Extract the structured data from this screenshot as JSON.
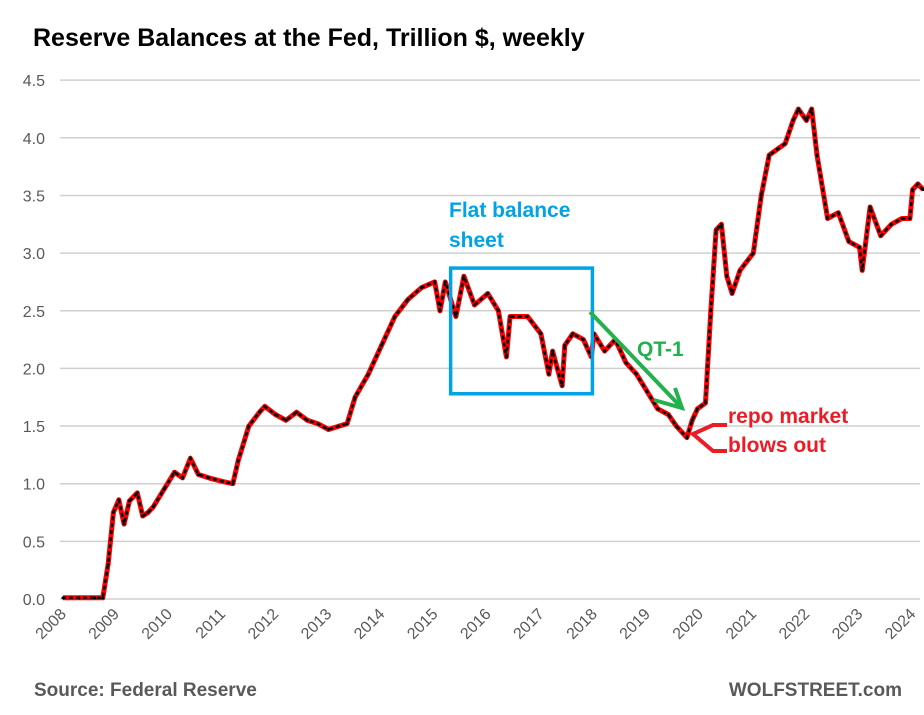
{
  "chart_data": {
    "type": "line",
    "title": "Reserve Balances at the Fed, Trillion $, weekly",
    "xlabel": "",
    "ylabel": "",
    "xlim": [
      2008,
      2024.25
    ],
    "ylim": [
      0,
      4.5
    ],
    "grid": true,
    "y_ticks": [
      "0.0",
      "0.5",
      "1.0",
      "1.5",
      "2.0",
      "2.5",
      "3.0",
      "3.5",
      "4.0",
      "4.5"
    ],
    "x_ticks": [
      "2008",
      "2009",
      "2010",
      "2011",
      "2012",
      "2013",
      "2014",
      "2015",
      "2016",
      "2017",
      "2018",
      "2019",
      "2020",
      "2021",
      "2022",
      "2023",
      "2024"
    ],
    "series": [
      {
        "name": "Reserve balances",
        "color": "#ff0000",
        "x": [
          2008.0,
          2008.3,
          2008.6,
          2008.75,
          2008.85,
          2008.95,
          2009.05,
          2009.15,
          2009.25,
          2009.4,
          2009.5,
          2009.6,
          2009.7,
          2009.9,
          2010.1,
          2010.25,
          2010.4,
          2010.55,
          2010.75,
          2011.0,
          2011.2,
          2011.3,
          2011.5,
          2011.7,
          2011.8,
          2012.0,
          2012.2,
          2012.4,
          2012.6,
          2012.8,
          2013.0,
          2013.2,
          2013.35,
          2013.5,
          2013.75,
          2014.0,
          2014.25,
          2014.5,
          2014.75,
          2015.0,
          2015.1,
          2015.2,
          2015.4,
          2015.55,
          2015.75,
          2016.0,
          2016.2,
          2016.35,
          2016.42,
          2016.75,
          2017.0,
          2017.15,
          2017.22,
          2017.4,
          2017.45,
          2017.6,
          2017.8,
          2017.95,
          2018.0,
          2018.2,
          2018.4,
          2018.6,
          2018.8,
          2019.0,
          2019.2,
          2019.4,
          2019.55,
          2019.75,
          2019.85,
          2019.95,
          2020.1,
          2020.2,
          2020.3,
          2020.4,
          2020.5,
          2020.6,
          2020.75,
          2021.0,
          2021.15,
          2021.3,
          2021.45,
          2021.6,
          2021.75,
          2021.85,
          2022.0,
          2022.1,
          2022.2,
          2022.4,
          2022.6,
          2022.8,
          2023.0,
          2023.05,
          2023.2,
          2023.4,
          2023.6,
          2023.8,
          2023.95,
          2024.0,
          2024.1,
          2024.2
        ],
        "values": [
          0.01,
          0.01,
          0.01,
          0.01,
          0.3,
          0.75,
          0.86,
          0.65,
          0.85,
          0.92,
          0.72,
          0.75,
          0.8,
          0.95,
          1.1,
          1.05,
          1.22,
          1.08,
          1.05,
          1.02,
          1.0,
          1.2,
          1.5,
          1.62,
          1.67,
          1.6,
          1.55,
          1.62,
          1.55,
          1.52,
          1.47,
          1.5,
          1.52,
          1.75,
          1.95,
          2.2,
          2.45,
          2.6,
          2.7,
          2.75,
          2.5,
          2.75,
          2.45,
          2.8,
          2.55,
          2.65,
          2.5,
          2.1,
          2.45,
          2.45,
          2.3,
          1.95,
          2.15,
          1.85,
          2.2,
          2.3,
          2.25,
          2.1,
          2.3,
          2.15,
          2.25,
          2.05,
          1.95,
          1.8,
          1.65,
          1.6,
          1.5,
          1.4,
          1.55,
          1.65,
          1.7,
          2.5,
          3.2,
          3.25,
          2.8,
          2.65,
          2.85,
          3.0,
          3.5,
          3.85,
          3.9,
          3.95,
          4.15,
          4.25,
          4.15,
          4.25,
          3.85,
          3.3,
          3.35,
          3.1,
          3.05,
          2.85,
          3.4,
          3.15,
          3.25,
          3.3,
          3.3,
          3.55,
          3.6,
          3.55
        ]
      }
    ],
    "annotations": {
      "flat_box_label_line1": "Flat balance",
      "flat_box_label_line2": "sheet",
      "qt_label": "QT-1",
      "repo_line1": "repo market",
      "repo_line2": "blows out",
      "colors": {
        "box": "#00a2e8",
        "qt": "#22b14c",
        "repo": "#ed1c24"
      }
    }
  },
  "footer": {
    "source": "Source: Federal Reserve",
    "brand": "WOLFSTREET.com"
  }
}
